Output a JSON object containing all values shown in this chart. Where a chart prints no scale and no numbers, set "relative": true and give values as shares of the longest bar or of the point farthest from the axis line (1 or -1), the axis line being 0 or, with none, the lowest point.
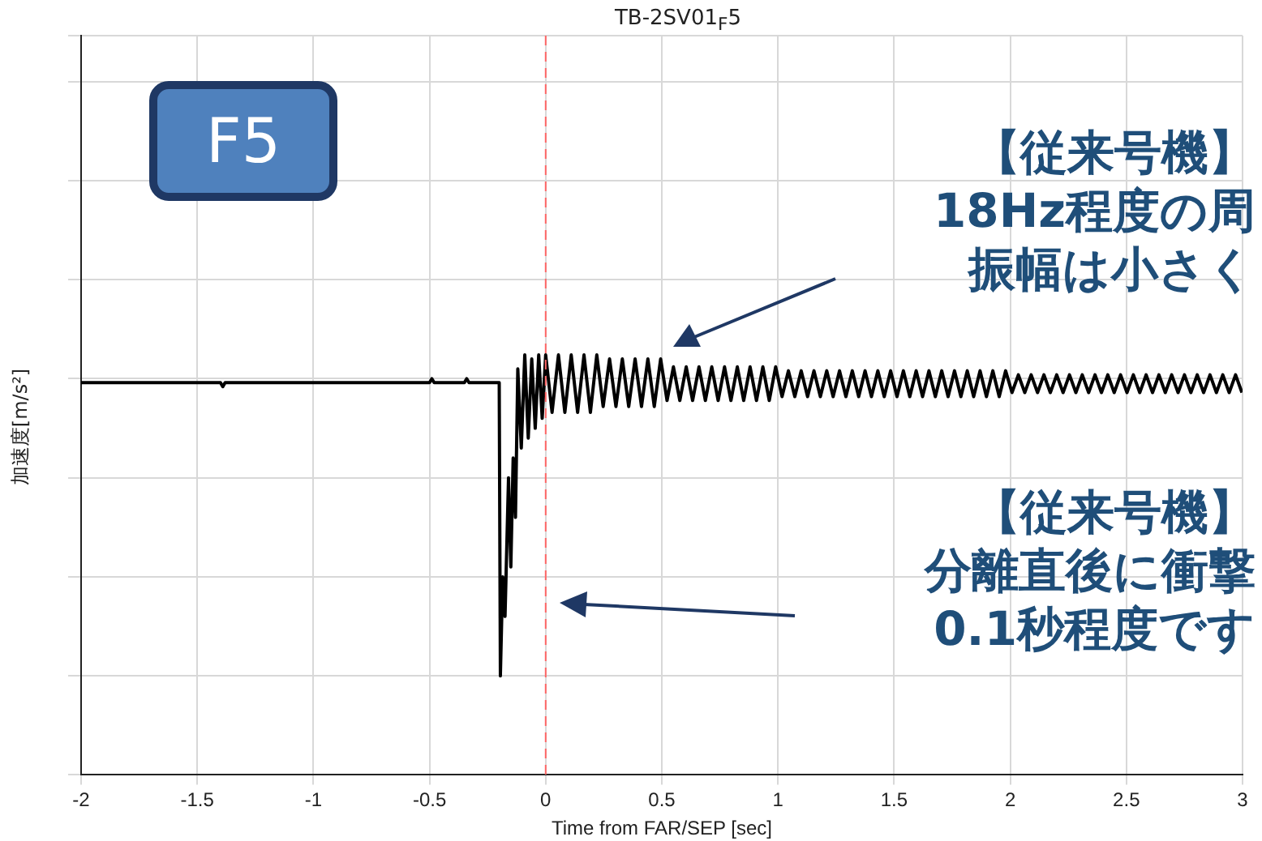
{
  "chart_data": {
    "type": "line",
    "title": "TB-2SV01$_{F}$5",
    "xlabel": "Time from FAR/SEP [sec]",
    "ylabel": "加速度[m/s²]",
    "relative": true,
    "grid": true,
    "legend": false,
    "marker": "none",
    "line_style": "solid",
    "xlim": [
      -2,
      3
    ],
    "xticks": [
      -2,
      -1.5,
      -1,
      -0.5,
      0,
      0.5,
      1,
      1.5,
      2,
      2.5,
      3
    ],
    "ref_lines": [
      {
        "axis": "x",
        "value": 0,
        "color": "#ff6666",
        "line_style": "dashed"
      }
    ],
    "annotations": [
      "F5",
      "【従来号機】",
      "18Hz程度の周",
      "振幅は小さく",
      "【従来号機】",
      "分離直後に衝撃",
      "0.1秒程度です"
    ],
    "series": [
      {
        "color": "#000000",
        "x": [
          -2,
          -1.4,
          -1.39,
          -1.38,
          -0.5,
          -0.49,
          -0.48,
          -0.35,
          -0.34,
          -0.33,
          -0.2,
          -0.195,
          -0.185,
          -0.175,
          -0.16,
          -0.15,
          -0.14,
          -0.13,
          -0.12,
          -0.105,
          -0.09,
          -0.075,
          -0.06,
          -0.045,
          -0.03,
          -0.015,
          0,
          0.0275,
          0.055,
          0.0825,
          0.11,
          0.1375,
          0.165,
          0.1925,
          0.22,
          0.2475,
          0.275,
          0.3025,
          0.33,
          0.3575,
          0.385,
          0.4125,
          0.44,
          0.4675,
          0.495,
          0.5225,
          0.55,
          0.5775,
          0.605,
          0.6325,
          0.66,
          0.6875,
          0.715,
          0.7425,
          0.77,
          0.7975,
          0.825,
          0.8525,
          0.88,
          0.9075,
          0.935,
          0.9625,
          0.99,
          1.0175,
          1.045,
          1.0725,
          1.1,
          1.1275,
          1.155,
          1.1825,
          1.21,
          1.2375,
          1.265,
          1.2925,
          1.32,
          1.3475,
          1.375,
          1.4025,
          1.43,
          1.4575,
          1.485,
          1.5125,
          1.54,
          1.5675,
          1.595,
          1.6225,
          1.65,
          1.6775,
          1.705,
          1.7325,
          1.76,
          1.7875,
          1.815,
          1.8425,
          1.87,
          1.8975,
          1.925,
          1.9525,
          1.98,
          2.0075,
          2.035,
          2.0625,
          2.09,
          2.1175,
          2.145,
          2.1725,
          2.2,
          2.2275,
          2.255,
          2.2825,
          2.31,
          2.3375,
          2.365,
          2.3925,
          2.42,
          2.4475,
          2.475,
          2.5025,
          2.53,
          2.5575,
          2.585,
          2.6125,
          2.64,
          2.6675,
          2.695,
          2.7225,
          2.75,
          2.7775,
          2.805,
          2.8325,
          2.86,
          2.8875,
          2.915,
          2.9425,
          2.97,
          2.9975
        ],
        "values": [
          0.48,
          0.48,
          0.46,
          0.48,
          0.48,
          0.5,
          0.48,
          0.48,
          0.5,
          0.48,
          0.48,
          -1,
          -0.5,
          -0.7,
          0,
          -0.45,
          0.1,
          -0.2,
          0.55,
          0.15,
          0.62,
          0.2,
          0.6,
          0.25,
          0.62,
          0.3,
          0.62,
          0.33,
          0.62,
          0.33,
          0.62,
          0.33,
          0.62,
          0.33,
          0.62,
          0.36,
          0.6,
          0.36,
          0.6,
          0.36,
          0.6,
          0.36,
          0.6,
          0.36,
          0.6,
          0.39,
          0.56,
          0.39,
          0.56,
          0.39,
          0.56,
          0.39,
          0.56,
          0.39,
          0.56,
          0.39,
          0.56,
          0.39,
          0.56,
          0.39,
          0.56,
          0.39,
          0.56,
          0.41,
          0.54,
          0.41,
          0.54,
          0.41,
          0.54,
          0.41,
          0.54,
          0.41,
          0.54,
          0.41,
          0.54,
          0.41,
          0.54,
          0.41,
          0.54,
          0.41,
          0.54,
          0.41,
          0.54,
          0.41,
          0.54,
          0.41,
          0.54,
          0.41,
          0.54,
          0.41,
          0.54,
          0.41,
          0.54,
          0.41,
          0.54,
          0.41,
          0.54,
          0.41,
          0.54,
          0.43,
          0.52,
          0.43,
          0.52,
          0.43,
          0.52,
          0.43,
          0.52,
          0.43,
          0.52,
          0.43,
          0.52,
          0.43,
          0.52,
          0.43,
          0.52,
          0.43,
          0.52,
          0.43,
          0.52,
          0.43,
          0.52,
          0.43,
          0.52,
          0.43,
          0.52,
          0.43,
          0.52,
          0.43,
          0.52,
          0.43,
          0.52,
          0.43,
          0.52,
          0.43,
          0.52,
          0.43
        ]
      }
    ]
  }
}
